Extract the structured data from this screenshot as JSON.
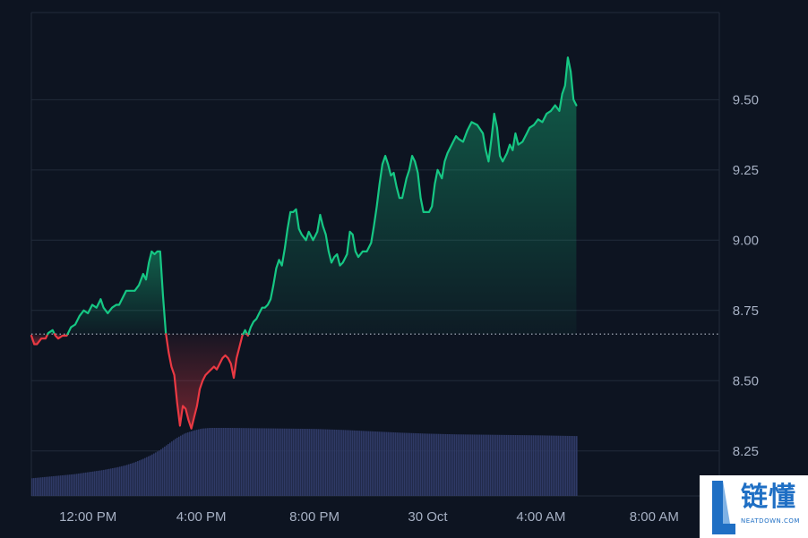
{
  "colors": {
    "background": "#0d1421",
    "grid": "#222b3a",
    "up_line": "#16c784",
    "down_line": "#ea3943",
    "volume": "#2f3a66",
    "baseline": "#cfd6e4",
    "axis_text": "#a6b0c3",
    "watermark_blue": "#1f6fc4"
  },
  "chart_data": {
    "type": "area",
    "title": "",
    "xlabel": "",
    "ylabel": "",
    "ylim": [
      8.09,
      9.81
    ],
    "y_ticks": [
      "9.50",
      "9.25",
      "9.00",
      "8.75",
      "8.50",
      "8.25"
    ],
    "y_tick_values": [
      9.5,
      9.25,
      9.0,
      8.75,
      8.5,
      8.25
    ],
    "x_ticks": [
      "12:00 PM",
      "4:00 PM",
      "8:00 PM",
      "30 Oct",
      "4:00 AM",
      "8:00 AM"
    ],
    "x_tick_hours": [
      2.0,
      6.0,
      10.0,
      14.0,
      18.0,
      22.0
    ],
    "x_range_hours": [
      0,
      24.3
    ],
    "baseline_value": 8.666,
    "baseline_style": "dotted",
    "grid": true,
    "legend": "none",
    "series": [
      {
        "values": [
          [
            0.0,
            8.66
          ],
          [
            0.1,
            8.63
          ],
          [
            0.2,
            8.63
          ],
          [
            0.35,
            8.65
          ],
          [
            0.5,
            8.65
          ],
          [
            0.6,
            8.67
          ],
          [
            0.75,
            8.68
          ],
          [
            0.85,
            8.66
          ],
          [
            0.95,
            8.65
          ],
          [
            1.1,
            8.66
          ],
          [
            1.25,
            8.66
          ],
          [
            1.4,
            8.69
          ],
          [
            1.55,
            8.7
          ],
          [
            1.7,
            8.73
          ],
          [
            1.85,
            8.75
          ],
          [
            2.0,
            8.74
          ],
          [
            2.15,
            8.77
          ],
          [
            2.3,
            8.76
          ],
          [
            2.4,
            8.78
          ],
          [
            2.45,
            8.79
          ],
          [
            2.55,
            8.76
          ],
          [
            2.7,
            8.74
          ],
          [
            2.85,
            8.76
          ],
          [
            3.0,
            8.77
          ],
          [
            3.1,
            8.77
          ],
          [
            3.25,
            8.8
          ],
          [
            3.35,
            8.82
          ],
          [
            3.5,
            8.82
          ],
          [
            3.65,
            8.82
          ],
          [
            3.8,
            8.84
          ],
          [
            3.95,
            8.88
          ],
          [
            4.05,
            8.86
          ],
          [
            4.15,
            8.92
          ],
          [
            4.25,
            8.96
          ],
          [
            4.35,
            8.95
          ],
          [
            4.45,
            8.96
          ],
          [
            4.55,
            8.96
          ],
          [
            4.65,
            8.8
          ],
          [
            4.75,
            8.67
          ],
          [
            4.85,
            8.6
          ],
          [
            4.95,
            8.55
          ],
          [
            5.05,
            8.52
          ],
          [
            5.15,
            8.42
          ],
          [
            5.25,
            8.34
          ],
          [
            5.35,
            8.41
          ],
          [
            5.45,
            8.4
          ],
          [
            5.55,
            8.36
          ],
          [
            5.65,
            8.33
          ],
          [
            5.75,
            8.37
          ],
          [
            5.85,
            8.41
          ],
          [
            5.95,
            8.47
          ],
          [
            6.05,
            8.5
          ],
          [
            6.15,
            8.52
          ],
          [
            6.25,
            8.53
          ],
          [
            6.35,
            8.54
          ],
          [
            6.45,
            8.55
          ],
          [
            6.55,
            8.54
          ],
          [
            6.65,
            8.56
          ],
          [
            6.75,
            8.58
          ],
          [
            6.85,
            8.59
          ],
          [
            6.95,
            8.58
          ],
          [
            7.05,
            8.56
          ],
          [
            7.15,
            8.51
          ],
          [
            7.25,
            8.58
          ],
          [
            7.35,
            8.62
          ],
          [
            7.45,
            8.66
          ],
          [
            7.55,
            8.68
          ],
          [
            7.65,
            8.66
          ],
          [
            7.75,
            8.69
          ],
          [
            7.85,
            8.71
          ],
          [
            7.95,
            8.72
          ],
          [
            8.05,
            8.74
          ],
          [
            8.15,
            8.76
          ],
          [
            8.25,
            8.76
          ],
          [
            8.35,
            8.77
          ],
          [
            8.45,
            8.79
          ],
          [
            8.55,
            8.84
          ],
          [
            8.65,
            8.9
          ],
          [
            8.75,
            8.93
          ],
          [
            8.85,
            8.91
          ],
          [
            8.95,
            8.97
          ],
          [
            9.05,
            9.04
          ],
          [
            9.15,
            9.1
          ],
          [
            9.25,
            9.1
          ],
          [
            9.35,
            9.11
          ],
          [
            9.45,
            9.04
          ],
          [
            9.55,
            9.02
          ],
          [
            9.7,
            9.0
          ],
          [
            9.8,
            9.03
          ],
          [
            9.95,
            9.0
          ],
          [
            10.1,
            9.03
          ],
          [
            10.2,
            9.09
          ],
          [
            10.3,
            9.05
          ],
          [
            10.4,
            9.02
          ],
          [
            10.5,
            8.96
          ],
          [
            10.6,
            8.92
          ],
          [
            10.7,
            8.94
          ],
          [
            10.8,
            8.95
          ],
          [
            10.9,
            8.91
          ],
          [
            11.0,
            8.92
          ],
          [
            11.15,
            8.95
          ],
          [
            11.25,
            9.03
          ],
          [
            11.35,
            9.02
          ],
          [
            11.45,
            8.96
          ],
          [
            11.55,
            8.94
          ],
          [
            11.7,
            8.96
          ],
          [
            11.85,
            8.96
          ],
          [
            12.0,
            8.99
          ],
          [
            12.1,
            9.05
          ],
          [
            12.2,
            9.12
          ],
          [
            12.3,
            9.2
          ],
          [
            12.4,
            9.27
          ],
          [
            12.5,
            9.3
          ],
          [
            12.6,
            9.27
          ],
          [
            12.7,
            9.23
          ],
          [
            12.8,
            9.24
          ],
          [
            12.9,
            9.19
          ],
          [
            13.0,
            9.15
          ],
          [
            13.1,
            9.15
          ],
          [
            13.25,
            9.22
          ],
          [
            13.35,
            9.25
          ],
          [
            13.45,
            9.3
          ],
          [
            13.55,
            9.28
          ],
          [
            13.65,
            9.24
          ],
          [
            13.75,
            9.15
          ],
          [
            13.85,
            9.1
          ],
          [
            14.05,
            9.1
          ],
          [
            14.15,
            9.12
          ],
          [
            14.25,
            9.2
          ],
          [
            14.35,
            9.25
          ],
          [
            14.5,
            9.22
          ],
          [
            14.6,
            9.28
          ],
          [
            14.7,
            9.31
          ],
          [
            14.85,
            9.34
          ],
          [
            15.0,
            9.37
          ],
          [
            15.1,
            9.36
          ],
          [
            15.25,
            9.35
          ],
          [
            15.4,
            9.39
          ],
          [
            15.55,
            9.42
          ],
          [
            15.75,
            9.41
          ],
          [
            15.95,
            9.38
          ],
          [
            16.05,
            9.32
          ],
          [
            16.15,
            9.28
          ],
          [
            16.25,
            9.36
          ],
          [
            16.35,
            9.45
          ],
          [
            16.45,
            9.4
          ],
          [
            16.55,
            9.3
          ],
          [
            16.65,
            9.28
          ],
          [
            16.8,
            9.31
          ],
          [
            16.9,
            9.34
          ],
          [
            17.0,
            9.32
          ],
          [
            17.1,
            9.38
          ],
          [
            17.2,
            9.34
          ],
          [
            17.35,
            9.35
          ],
          [
            17.5,
            9.38
          ],
          [
            17.6,
            9.4
          ],
          [
            17.75,
            9.41
          ],
          [
            17.9,
            9.43
          ],
          [
            18.05,
            9.42
          ],
          [
            18.2,
            9.45
          ],
          [
            18.35,
            9.46
          ],
          [
            18.5,
            9.48
          ],
          [
            18.65,
            9.46
          ],
          [
            18.75,
            9.52
          ],
          [
            18.85,
            9.55
          ],
          [
            18.95,
            9.65
          ],
          [
            19.05,
            9.6
          ],
          [
            19.15,
            9.5
          ],
          [
            19.25,
            9.48
          ]
        ]
      }
    ],
    "volume": [
      [
        0.0,
        0.26
      ],
      [
        0.5,
        0.28
      ],
      [
        1.0,
        0.3
      ],
      [
        1.5,
        0.32
      ],
      [
        2.0,
        0.35
      ],
      [
        2.5,
        0.38
      ],
      [
        3.0,
        0.42
      ],
      [
        3.3,
        0.45
      ],
      [
        3.6,
        0.49
      ],
      [
        3.9,
        0.54
      ],
      [
        4.2,
        0.6
      ],
      [
        4.5,
        0.67
      ],
      [
        4.8,
        0.76
      ],
      [
        5.1,
        0.85
      ],
      [
        5.4,
        0.92
      ],
      [
        5.7,
        0.96
      ],
      [
        6.0,
        0.99
      ],
      [
        6.3,
        1.0
      ],
      [
        7.0,
        1.0
      ],
      [
        8.0,
        0.995
      ],
      [
        9.0,
        0.99
      ],
      [
        10.0,
        0.985
      ],
      [
        11.0,
        0.97
      ],
      [
        12.0,
        0.95
      ],
      [
        13.0,
        0.93
      ],
      [
        14.0,
        0.915
      ],
      [
        15.0,
        0.905
      ],
      [
        16.0,
        0.9
      ],
      [
        17.0,
        0.895
      ],
      [
        18.0,
        0.89
      ],
      [
        19.25,
        0.88
      ]
    ]
  },
  "watermark": {
    "title": "链懂",
    "subtitle": "NEATDOWN.COM"
  }
}
